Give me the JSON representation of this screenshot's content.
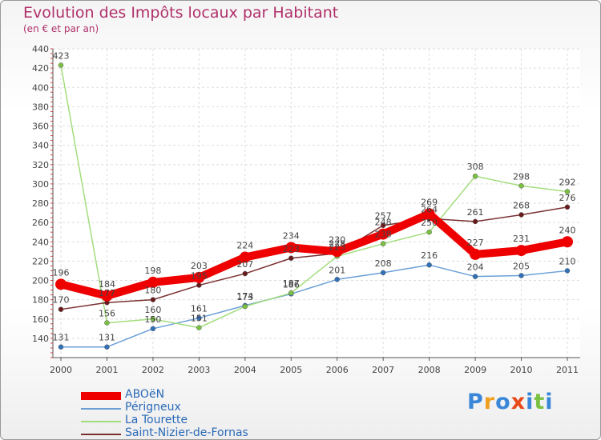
{
  "title": "Evolution des Impôts locaux par Habitant",
  "subtitle": "(en € et par an)",
  "brand": [
    "P",
    "r",
    "o",
    "x",
    "i",
    "t",
    "i"
  ],
  "brand_colors": [
    "#3a86d8",
    "#f0a020",
    "#3a86d8",
    "#e84a1a",
    "#3a86d8",
    "#7ac142",
    "#3a86d8"
  ],
  "chart_data": {
    "type": "line",
    "x": [
      "2000",
      "2001",
      "2002",
      "2003",
      "2004",
      "2005",
      "2006",
      "2007",
      "2008",
      "2009",
      "2010",
      "2011"
    ],
    "ylim": [
      120,
      440
    ],
    "yticks": [
      "140",
      "160",
      "180",
      "200",
      "220",
      "240",
      "260",
      "280",
      "300",
      "320",
      "340",
      "360",
      "380",
      "400",
      "420",
      "440"
    ],
    "grid": true,
    "series": [
      {
        "name": "ABOëN",
        "color": "#ee0000",
        "marker": "#ee0000",
        "values": [
          196,
          184,
          198,
          203,
          224,
          234,
          230,
          248,
          269,
          227,
          231,
          240
        ],
        "labels": [
          "196",
          "184",
          "198",
          "203",
          "224",
          "234",
          "230",
          "248",
          "269",
          "227",
          "231",
          "240"
        ]
      },
      {
        "name": "Périgneux",
        "color": "#6a9fd6",
        "marker": "#2f70b8",
        "values": [
          131,
          131,
          150,
          161,
          174,
          186,
          201,
          208,
          216,
          204,
          205,
          210
        ],
        "labels": [
          "131",
          "131",
          "150",
          "161",
          "174",
          "186",
          "201",
          "208",
          "216",
          "204",
          "205",
          "210"
        ]
      },
      {
        "name": "La Tourette",
        "color": "#a3dd7d",
        "marker": "#7ac142",
        "values": [
          423,
          156,
          160,
          151,
          173,
          187,
          225,
          238,
          250,
          308,
          298,
          292
        ],
        "labels": [
          "423",
          "156",
          "160",
          "151",
          "173",
          "187",
          "225",
          "238",
          "250",
          "308",
          "298",
          "292"
        ]
      },
      {
        "name": "Saint-Nizier-de-Fornas",
        "color": "#7a3030",
        "marker": "#6a1a1a",
        "values": [
          170,
          177,
          180,
          195,
          207,
          223,
          228,
          257,
          264,
          261,
          268,
          276
        ],
        "labels": [
          "170",
          "177",
          "180",
          "195",
          "207",
          "223",
          "228",
          "257",
          "264",
          "261",
          "268",
          "276"
        ]
      }
    ]
  }
}
